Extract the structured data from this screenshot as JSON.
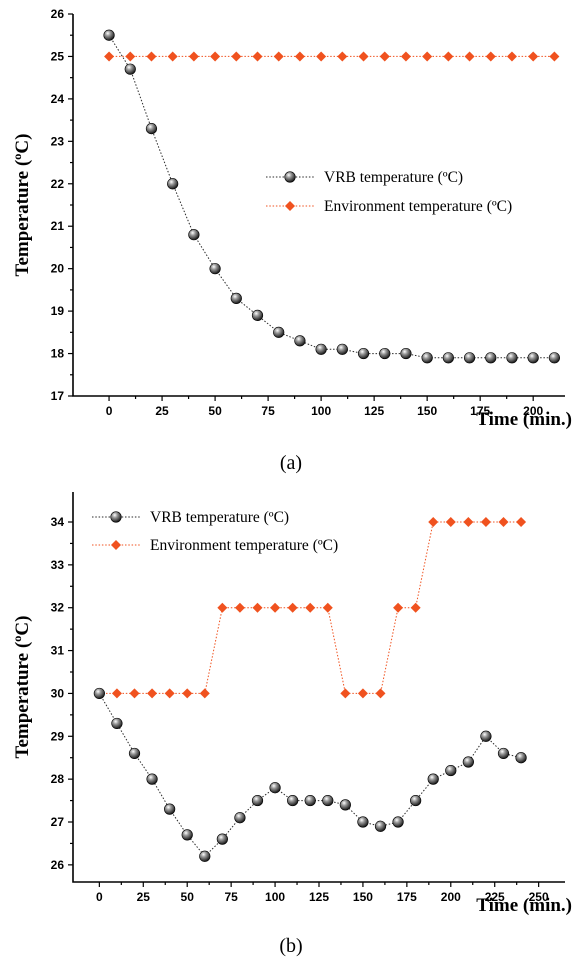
{
  "chart_data": [
    {
      "type": "line",
      "caption": "(a)",
      "xlabel": "Time (min.)",
      "ylabel": "Temperature (ºC)",
      "xlim": [
        -17,
        215
      ],
      "ylim": [
        17,
        26
      ],
      "xticks": [
        0,
        25,
        50,
        75,
        100,
        125,
        150,
        175,
        200
      ],
      "yticks": [
        17,
        18,
        19,
        20,
        21,
        22,
        23,
        24,
        25,
        26
      ],
      "grid": false,
      "legend_position": "center-right",
      "series": [
        {
          "name": "VRB temperature (ºC)",
          "marker": "sphere",
          "color": "#2a2a2a",
          "x": [
            0,
            10,
            20,
            30,
            40,
            50,
            60,
            70,
            80,
            90,
            100,
            110,
            120,
            130,
            140,
            150,
            160,
            170,
            180,
            190,
            200,
            210
          ],
          "y": [
            25.5,
            24.7,
            23.3,
            22.0,
            20.8,
            20.0,
            19.3,
            18.9,
            18.5,
            18.3,
            18.1,
            18.1,
            18.0,
            18.0,
            18.0,
            17.9,
            17.9,
            17.9,
            17.9,
            17.9,
            17.9,
            17.9
          ]
        },
        {
          "name": "Environment temperature (ºC)",
          "marker": "diamond",
          "color": "#f0521f",
          "x": [
            0,
            10,
            20,
            30,
            40,
            50,
            60,
            70,
            80,
            90,
            100,
            110,
            120,
            130,
            140,
            150,
            160,
            170,
            180,
            190,
            200,
            210
          ],
          "y": [
            25,
            25,
            25,
            25,
            25,
            25,
            25,
            25,
            25,
            25,
            25,
            25,
            25,
            25,
            25,
            25,
            25,
            25,
            25,
            25,
            25,
            25
          ]
        }
      ]
    },
    {
      "type": "line",
      "caption": "(b)",
      "xlabel": "Time (min.)",
      "ylabel": "Temperature (ºC)",
      "xlim": [
        -15,
        265
      ],
      "ylim": [
        25.6,
        34.7
      ],
      "xticks": [
        0,
        25,
        50,
        75,
        100,
        125,
        150,
        175,
        200,
        225,
        250
      ],
      "yticks": [
        26,
        27,
        28,
        29,
        30,
        31,
        32,
        33,
        34
      ],
      "grid": false,
      "legend_position": "top-left",
      "series": [
        {
          "name": "VRB temperature (ºC)",
          "marker": "sphere",
          "color": "#2a2a2a",
          "x": [
            0,
            10,
            20,
            30,
            40,
            50,
            60,
            70,
            80,
            90,
            100,
            110,
            120,
            130,
            140,
            150,
            160,
            170,
            180,
            190,
            200,
            210,
            220,
            230,
            240
          ],
          "y": [
            30.0,
            29.3,
            28.6,
            28.0,
            27.3,
            26.7,
            26.2,
            26.6,
            27.1,
            27.5,
            27.8,
            27.5,
            27.5,
            27.5,
            27.4,
            27.0,
            26.9,
            27.0,
            27.5,
            28.0,
            28.2,
            28.4,
            29.0,
            28.6,
            28.5
          ]
        },
        {
          "name": "Environment temperature (ºC)",
          "marker": "diamond",
          "color": "#f0521f",
          "x": [
            0,
            10,
            20,
            30,
            40,
            50,
            60,
            70,
            80,
            90,
            100,
            110,
            120,
            130,
            140,
            150,
            160,
            170,
            180,
            190,
            200,
            210,
            220,
            230,
            240
          ],
          "y": [
            30,
            30,
            30,
            30,
            30,
            30,
            30,
            32,
            32,
            32,
            32,
            32,
            32,
            32,
            30,
            30,
            30,
            32,
            32,
            34,
            34,
            34,
            34,
            34,
            34
          ]
        }
      ]
    }
  ]
}
